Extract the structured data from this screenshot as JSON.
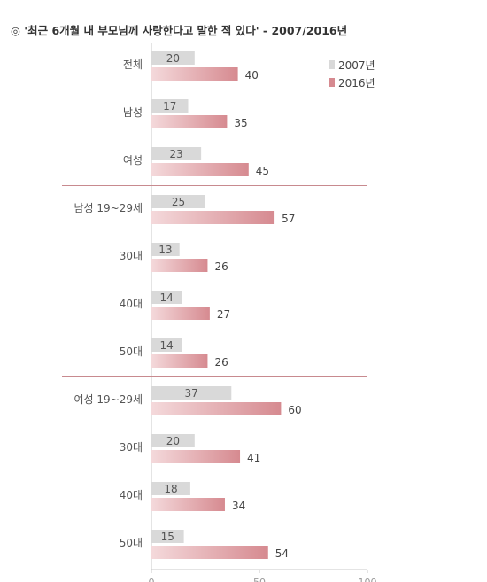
{
  "chart_data": {
    "type": "bar",
    "orientation": "horizontal",
    "title": "◎ '최근 6개월 내 부모님께 사랑한다고 말한 적 있다' - 2007/2016년",
    "categories": [
      "전체",
      "남성",
      "여성",
      "남성 19~29세",
      "30대",
      "40대",
      "50대",
      "여성 19~29세",
      "30대",
      "40대",
      "50대"
    ],
    "series": [
      {
        "name": "2007년",
        "values": [
          20,
          17,
          23,
          25,
          13,
          14,
          14,
          37,
          20,
          18,
          15
        ]
      },
      {
        "name": "2016년",
        "values": [
          40,
          35,
          45,
          57,
          26,
          27,
          26,
          60,
          41,
          34,
          54
        ]
      }
    ],
    "group_separators_after": [
      2,
      6
    ],
    "xlim": [
      0,
      100
    ],
    "xticks": [
      0,
      50,
      100
    ],
    "grid": false,
    "legend_position": "top-right",
    "colors": {
      "series_2007": "#d9d9d9",
      "series_2016_light": "#f4d9db",
      "series_2016_dark": "#d68a90",
      "separator": "#c88a8f"
    }
  }
}
